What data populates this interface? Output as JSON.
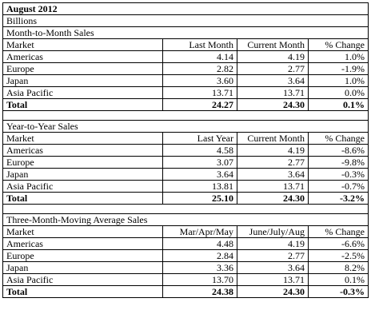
{
  "title": "August 2012",
  "unit": "Billions",
  "sections": [
    {
      "heading": "Month-to-Month Sales",
      "col_headers": [
        "Market",
        "Last Month",
        "Current Month",
        "% Change"
      ],
      "rows": [
        [
          "Americas",
          "4.14",
          "4.19",
          "1.0%"
        ],
        [
          "Europe",
          "2.82",
          "2.77",
          "-1.9%"
        ],
        [
          "Japan",
          "3.60",
          "3.64",
          "1.0%"
        ],
        [
          "Asia Pacific",
          "13.71",
          "13.71",
          "0.0%"
        ]
      ],
      "total": [
        "Total",
        "24.27",
        "24.30",
        "0.1%"
      ]
    },
    {
      "heading": "Year-to-Year Sales",
      "col_headers": [
        "Market",
        "Last Year",
        "Current Month",
        "% Change"
      ],
      "rows": [
        [
          "Americas",
          "4.58",
          "4.19",
          "-8.6%"
        ],
        [
          "Europe",
          "3.07",
          "2.77",
          "-9.8%"
        ],
        [
          "Japan",
          "3.64",
          "3.64",
          "-0.3%"
        ],
        [
          "Asia Pacific",
          "13.81",
          "13.71",
          "-0.7%"
        ]
      ],
      "total": [
        "Total",
        "25.10",
        "24.30",
        "-3.2%"
      ]
    },
    {
      "heading": "Three-Month-Moving Average Sales",
      "col_headers": [
        "Market",
        "Mar/Apr/May",
        "June/July/Aug",
        "% Change"
      ],
      "rows": [
        [
          "Americas",
          "4.48",
          "4.19",
          "-6.6%"
        ],
        [
          "Europe",
          "2.84",
          "2.77",
          "-2.5%"
        ],
        [
          "Japan",
          "3.36",
          "3.64",
          "8.2%"
        ],
        [
          "Asia Pacific",
          "13.70",
          "13.71",
          "0.1%"
        ]
      ],
      "total": [
        "Total",
        "24.38",
        "24.30",
        "-0.3%"
      ]
    }
  ]
}
